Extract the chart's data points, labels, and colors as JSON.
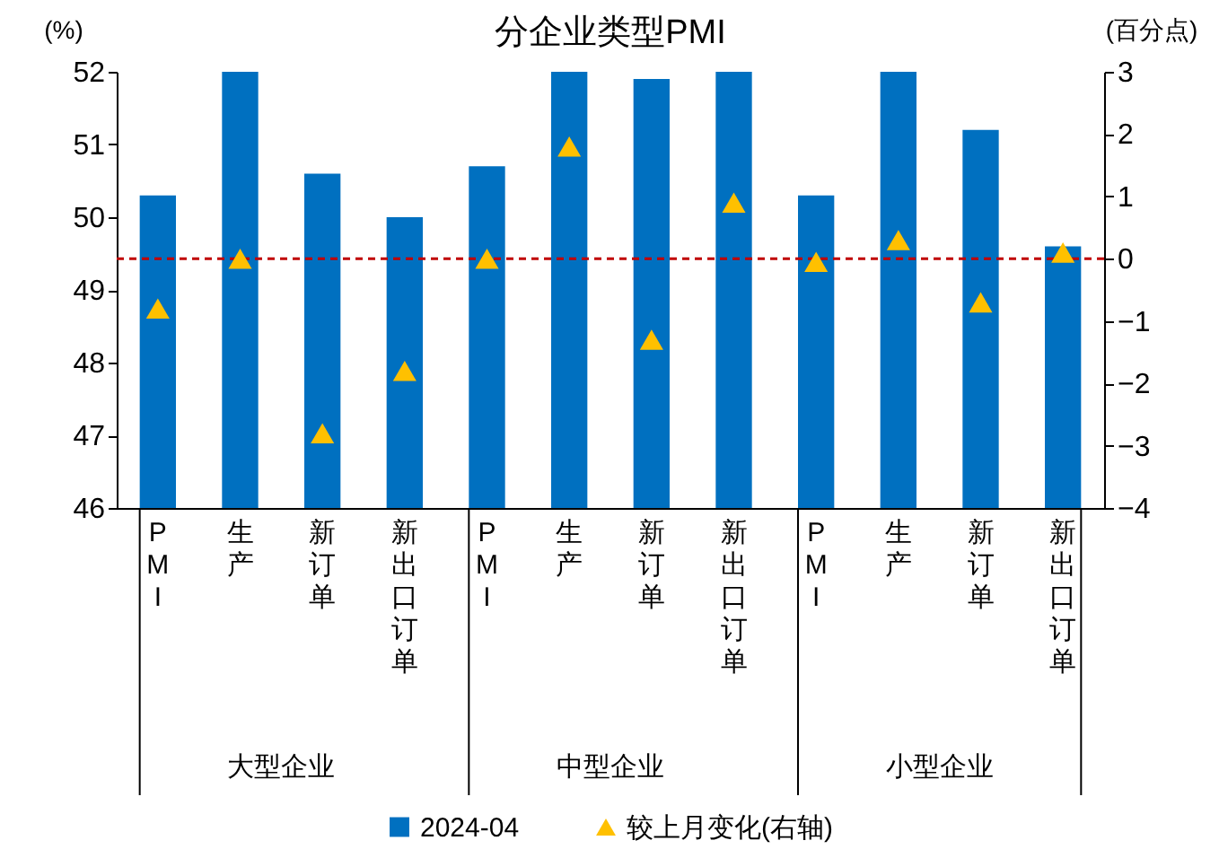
{
  "chart_data": {
    "type": "bar",
    "title": "分企业类型PMI",
    "ylabel": "(%)",
    "y2label": "(百分点)",
    "categories": [
      "PMI",
      "生产",
      "新订单",
      "新出口订单",
      "PMI",
      "生产",
      "新订单",
      "新出口订单",
      "PMI",
      "生产",
      "新订单",
      "新出口订单"
    ],
    "series": [
      {
        "name": "2024-04",
        "color": "#0070c0",
        "values": [
          50.3,
          52,
          50.6,
          50.0,
          50.7,
          52,
          51.9,
          52,
          50.3,
          52,
          51.2,
          49.6
        ]
      },
      {
        "name": "较上月变化(右轴)",
        "type": "scatter",
        "axis": "y2",
        "marker": "triangle",
        "color": "#ffc000",
        "values": [
          -0.8,
          0,
          -2.8,
          -1.8,
          0,
          1.8,
          -1.3,
          0.9,
          -0.05,
          0.3,
          -0.7,
          0.1
        ]
      }
    ],
    "annotations": [
      "大型企业",
      "中型企业",
      "小型企业"
    ],
    "ylim": [
      46,
      52
    ],
    "yticks": [
      46,
      47,
      48,
      49,
      50,
      51,
      52
    ],
    "y2lim": [
      -4,
      3
    ],
    "y2ticks": [
      -4,
      -3,
      -2,
      -1,
      0,
      1,
      2,
      3
    ],
    "ref_lines": [
      {
        "axis": "y2",
        "value": 0,
        "color": "#c00000",
        "line_style": "dashed"
      }
    ],
    "legend": "bottom",
    "grid": false
  }
}
